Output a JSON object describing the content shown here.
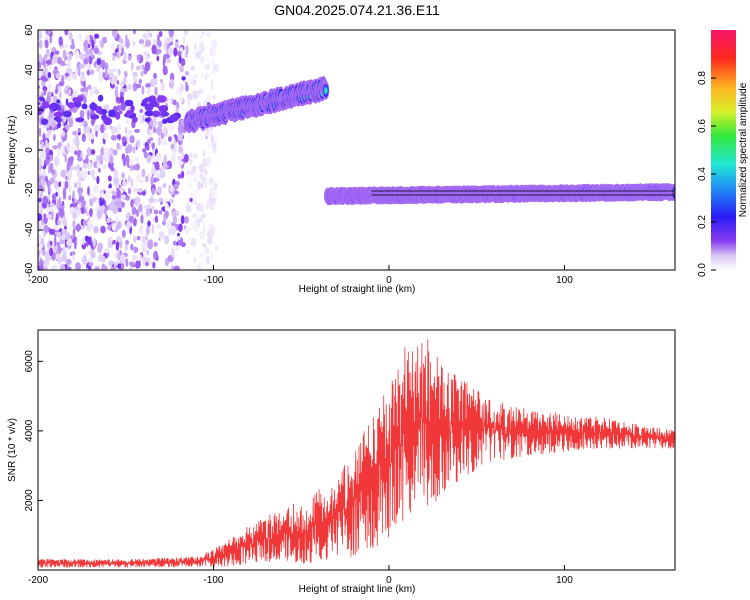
{
  "title": "GN04.2025.074.21.36.E11",
  "chart_data": [
    {
      "type": "heatmap",
      "xlabel": "Height of straight line (km)",
      "ylabel": "Frequency (Hz)",
      "xlim": [
        -200,
        163
      ],
      "ylim": [
        -60,
        60
      ],
      "xticks": [
        -200,
        -100,
        0,
        100
      ],
      "yticks": [
        -60,
        -40,
        -20,
        0,
        20,
        40,
        60
      ],
      "colorbar": {
        "label": "Normalized spectral amplitude",
        "range": [
          0.0,
          1.0
        ],
        "ticks": [
          "0.0",
          "0.2",
          "0.4",
          "0.6",
          "0.8"
        ]
      },
      "features": [
        {
          "kind": "broadband noise",
          "x": [
            -200,
            -100
          ],
          "y": [
            -60,
            60
          ],
          "level": 0.05
        },
        {
          "kind": "signal band",
          "x": [
            -115,
            -36
          ],
          "y_start": 14,
          "y_end": 31,
          "level": 0.3
        },
        {
          "kind": "signal band",
          "x": [
            -35,
            163
          ],
          "y_start": -23,
          "y_end": -21,
          "level": 0.8
        }
      ]
    },
    {
      "type": "line",
      "xlabel": "Height of straight line (km)",
      "ylabel": "SNR (10 * v/v)",
      "xlim": [
        -200,
        163
      ],
      "ylim": [
        0,
        6900
      ],
      "xticks": [
        -200,
        -100,
        0,
        100
      ],
      "yticks": [
        2000,
        4000,
        6000
      ],
      "series": [
        {
          "color": "#f0383a",
          "envelope": [
            {
              "x": -200,
              "low": 80,
              "high": 320
            },
            {
              "x": -150,
              "low": 80,
              "high": 300
            },
            {
              "x": -110,
              "low": 100,
              "high": 380
            },
            {
              "x": -100,
              "low": 100,
              "high": 600
            },
            {
              "x": -90,
              "low": 100,
              "high": 900
            },
            {
              "x": -80,
              "low": 200,
              "high": 1300
            },
            {
              "x": -60,
              "low": 200,
              "high": 1800
            },
            {
              "x": -45,
              "low": 200,
              "high": 2100
            },
            {
              "x": -30,
              "low": 250,
              "high": 2700
            },
            {
              "x": -20,
              "low": 400,
              "high": 3600
            },
            {
              "x": -10,
              "low": 600,
              "high": 4700
            },
            {
              "x": 0,
              "low": 900,
              "high": 5400
            },
            {
              "x": 10,
              "low": 1300,
              "high": 6500
            },
            {
              "x": 20,
              "low": 1700,
              "high": 6900
            },
            {
              "x": 30,
              "low": 2100,
              "high": 5900
            },
            {
              "x": 40,
              "low": 2500,
              "high": 5600
            },
            {
              "x": 50,
              "low": 2900,
              "high": 5200
            },
            {
              "x": 60,
              "low": 3100,
              "high": 4900
            },
            {
              "x": 80,
              "low": 3300,
              "high": 4600
            },
            {
              "x": 100,
              "low": 3400,
              "high": 4500
            },
            {
              "x": 120,
              "low": 3500,
              "high": 4400
            },
            {
              "x": 140,
              "low": 3500,
              "high": 4200
            },
            {
              "x": 163,
              "low": 3500,
              "high": 4000
            }
          ]
        }
      ]
    }
  ]
}
